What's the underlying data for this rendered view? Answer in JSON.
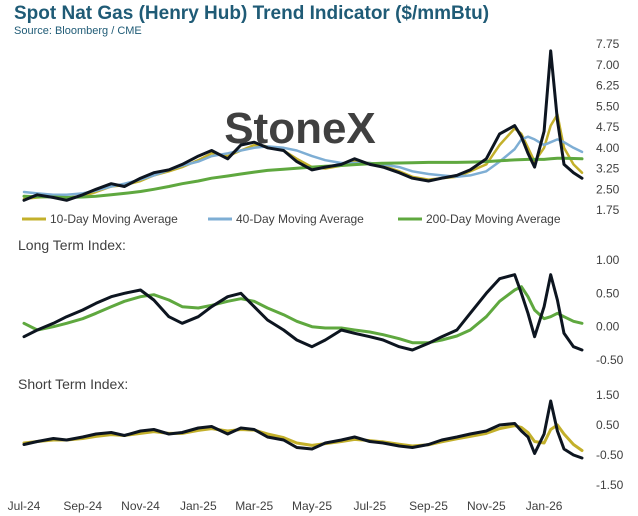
{
  "title": "Spot Nat Gas (Henry Hub) Trend Indicator ($/mmBtu)",
  "source": "Source: Bloomberg / CME",
  "watermark": "StoneX",
  "colors": {
    "price": "#0d1520",
    "ma10": "#c3b02b",
    "ma40": "#7eaed4",
    "ma200": "#5fa83f",
    "title": "#1f5b76",
    "watermark": "#c9c9c9"
  },
  "chart_data": [
    {
      "type": "line",
      "panel": "price",
      "x_dates": [
        "2024-07-01",
        "2024-07-15",
        "2024-08-01",
        "2024-08-15",
        "2024-09-01",
        "2024-09-15",
        "2024-10-01",
        "2024-10-15",
        "2024-11-01",
        "2024-11-15",
        "2024-12-01",
        "2024-12-15",
        "2025-01-01",
        "2025-01-15",
        "2025-02-01",
        "2025-02-15",
        "2025-03-01",
        "2025-03-15",
        "2025-04-01",
        "2025-04-15",
        "2025-05-01",
        "2025-05-15",
        "2025-06-01",
        "2025-06-15",
        "2025-07-01",
        "2025-07-15",
        "2025-08-01",
        "2025-08-15",
        "2025-09-01",
        "2025-09-15",
        "2025-10-01",
        "2025-10-15",
        "2025-11-01",
        "2025-11-15",
        "2025-12-01",
        "2025-12-08",
        "2025-12-15",
        "2025-12-22",
        "2026-01-01",
        "2026-01-08",
        "2026-01-15",
        "2026-01-22",
        "2026-02-01",
        "2026-02-10"
      ],
      "series": [
        {
          "name": "Spot",
          "values": [
            2.1,
            2.3,
            2.2,
            2.1,
            2.3,
            2.5,
            2.7,
            2.6,
            2.9,
            3.1,
            3.2,
            3.4,
            3.7,
            3.9,
            3.6,
            4.1,
            4.2,
            4.0,
            3.9,
            3.5,
            3.2,
            3.3,
            3.4,
            3.6,
            3.4,
            3.3,
            3.1,
            2.9,
            2.8,
            2.9,
            3.0,
            3.2,
            3.6,
            4.5,
            4.8,
            4.4,
            3.8,
            3.3,
            4.6,
            7.5,
            5.0,
            3.4,
            3.1,
            2.9
          ]
        },
        {
          "name": "10-Day Moving Average",
          "values": [
            2.15,
            2.2,
            2.25,
            2.2,
            2.25,
            2.4,
            2.6,
            2.65,
            2.8,
            3.0,
            3.15,
            3.3,
            3.55,
            3.8,
            3.7,
            3.9,
            4.1,
            4.05,
            3.9,
            3.6,
            3.3,
            3.25,
            3.35,
            3.5,
            3.45,
            3.35,
            3.15,
            2.95,
            2.85,
            2.9,
            2.95,
            3.15,
            3.4,
            4.1,
            4.7,
            4.5,
            4.0,
            3.5,
            4.0,
            4.8,
            5.2,
            4.0,
            3.4,
            3.1
          ]
        },
        {
          "name": "40-Day Moving Average",
          "values": [
            2.4,
            2.35,
            2.3,
            2.3,
            2.35,
            2.45,
            2.6,
            2.7,
            2.85,
            3.0,
            3.2,
            3.35,
            3.5,
            3.7,
            3.8,
            3.9,
            4.0,
            4.05,
            4.0,
            3.9,
            3.7,
            3.55,
            3.45,
            3.45,
            3.45,
            3.4,
            3.3,
            3.15,
            3.05,
            3.0,
            2.95,
            3.0,
            3.15,
            3.5,
            3.95,
            4.3,
            4.4,
            4.3,
            4.1,
            4.2,
            4.3,
            4.2,
            4.0,
            3.85
          ]
        },
        {
          "name": "200-Day Moving Average",
          "values": [
            2.25,
            2.23,
            2.22,
            2.2,
            2.22,
            2.25,
            2.3,
            2.35,
            2.42,
            2.5,
            2.6,
            2.7,
            2.8,
            2.9,
            2.98,
            3.05,
            3.12,
            3.18,
            3.22,
            3.26,
            3.3,
            3.33,
            3.36,
            3.39,
            3.42,
            3.44,
            3.45,
            3.46,
            3.47,
            3.47,
            3.47,
            3.48,
            3.5,
            3.53,
            3.56,
            3.57,
            3.58,
            3.58,
            3.58,
            3.6,
            3.62,
            3.62,
            3.61,
            3.6
          ]
        }
      ],
      "y_ticks": [
        "7.75",
        "7.00",
        "6.25",
        "5.50",
        "4.75",
        "4.00",
        "3.25",
        "2.50",
        "1.75"
      ],
      "ylim": [
        1.75,
        7.75
      ],
      "legend": [
        "10-Day Moving Average",
        "40-Day Moving Average",
        "200-Day Moving Average"
      ],
      "legend_position": "bottom"
    },
    {
      "type": "line",
      "panel": "long",
      "title": "Long Term Index:",
      "series": [
        {
          "name": "Long Term Index",
          "values": [
            -0.15,
            -0.05,
            0.05,
            0.15,
            0.25,
            0.35,
            0.45,
            0.5,
            0.55,
            0.4,
            0.15,
            0.05,
            0.15,
            0.3,
            0.45,
            0.5,
            0.3,
            0.1,
            -0.05,
            -0.2,
            -0.3,
            -0.2,
            -0.05,
            -0.1,
            -0.15,
            -0.2,
            -0.3,
            -0.35,
            -0.25,
            -0.15,
            -0.05,
            0.2,
            0.5,
            0.72,
            0.78,
            0.5,
            0.2,
            -0.15,
            0.3,
            0.78,
            0.4,
            -0.1,
            -0.3,
            -0.35
          ]
        },
        {
          "name": "Long Term Trend",
          "values": [
            0.05,
            -0.05,
            0.0,
            0.05,
            0.12,
            0.2,
            0.3,
            0.38,
            0.45,
            0.48,
            0.4,
            0.3,
            0.28,
            0.32,
            0.38,
            0.42,
            0.38,
            0.28,
            0.18,
            0.08,
            0.0,
            -0.02,
            -0.02,
            -0.05,
            -0.08,
            -0.12,
            -0.18,
            -0.24,
            -0.24,
            -0.2,
            -0.14,
            -0.05,
            0.15,
            0.38,
            0.55,
            0.6,
            0.45,
            0.25,
            0.12,
            0.15,
            0.2,
            0.15,
            0.08,
            0.05
          ]
        }
      ],
      "y_ticks": [
        "1.00",
        "0.50",
        "0.00",
        "-0.50"
      ],
      "ylim": [
        -0.5,
        1.0
      ]
    },
    {
      "type": "line",
      "panel": "short",
      "title": "Short Term Index:",
      "series": [
        {
          "name": "Short Term Index",
          "values": [
            -0.15,
            -0.05,
            0.05,
            0.0,
            0.1,
            0.2,
            0.25,
            0.15,
            0.3,
            0.35,
            0.2,
            0.25,
            0.4,
            0.45,
            0.2,
            0.4,
            0.35,
            0.1,
            0.0,
            -0.25,
            -0.3,
            -0.1,
            0.0,
            0.1,
            -0.05,
            -0.1,
            -0.2,
            -0.25,
            -0.15,
            0.0,
            0.1,
            0.2,
            0.3,
            0.5,
            0.55,
            0.3,
            0.1,
            -0.45,
            0.2,
            1.3,
            0.3,
            -0.3,
            -0.5,
            -0.6
          ]
        },
        {
          "name": "Short Term Trend",
          "values": [
            -0.1,
            -0.05,
            0.0,
            0.0,
            0.05,
            0.12,
            0.18,
            0.15,
            0.22,
            0.28,
            0.22,
            0.22,
            0.32,
            0.38,
            0.3,
            0.35,
            0.33,
            0.2,
            0.08,
            -0.1,
            -0.18,
            -0.12,
            -0.05,
            0.02,
            -0.02,
            -0.06,
            -0.14,
            -0.2,
            -0.16,
            -0.06,
            0.04,
            0.12,
            0.22,
            0.38,
            0.48,
            0.42,
            0.25,
            -0.05,
            -0.1,
            0.35,
            0.5,
            0.2,
            -0.15,
            -0.35
          ]
        }
      ],
      "y_ticks": [
        "1.50",
        "0.50",
        "-0.50",
        "-1.50"
      ],
      "ylim": [
        -1.5,
        1.5
      ]
    }
  ],
  "x_ticks": [
    "Jul-24",
    "Sep-24",
    "Nov-24",
    "Jan-25",
    "Mar-25",
    "May-25",
    "Jul-25",
    "Sep-25",
    "Nov-25",
    "Jan-26"
  ]
}
